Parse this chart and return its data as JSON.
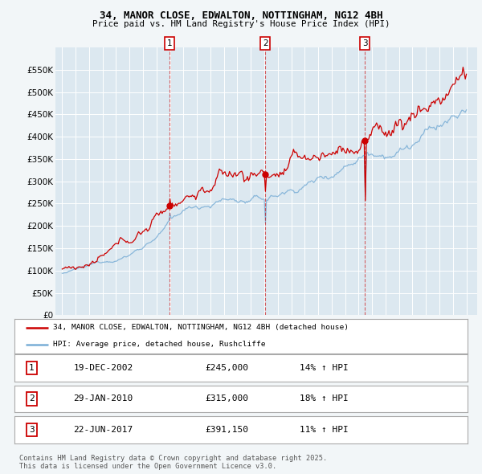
{
  "title_line1": "34, MANOR CLOSE, EDWALTON, NOTTINGHAM, NG12 4BH",
  "title_line2": "Price paid vs. HM Land Registry's House Price Index (HPI)",
  "bg_color": "#dce8f0",
  "plot_bg_color": "#dce8f0",
  "grid_color": "#ffffff",
  "red_color": "#cc0000",
  "blue_color": "#7aaed6",
  "ylim": [
    0,
    600000
  ],
  "ytick_vals": [
    0,
    50000,
    100000,
    150000,
    200000,
    250000,
    300000,
    350000,
    400000,
    450000,
    500000,
    550000
  ],
  "ytick_labels": [
    "£0",
    "£50K",
    "£100K",
    "£150K",
    "£200K",
    "£250K",
    "£300K",
    "£350K",
    "£400K",
    "£450K",
    "£500K",
    "£550K"
  ],
  "purchase_year_floats": [
    2002.96,
    2010.08,
    2017.47
  ],
  "purchase_prices": [
    245000,
    315000,
    391150
  ],
  "purchase_labels": [
    "1",
    "2",
    "3"
  ],
  "legend_entries": [
    "34, MANOR CLOSE, EDWALTON, NOTTINGHAM, NG12 4BH (detached house)",
    "HPI: Average price, detached house, Rushcliffe"
  ],
  "table_rows": [
    [
      "1",
      "19-DEC-2002",
      "£245,000",
      "14% ↑ HPI"
    ],
    [
      "2",
      "29-JAN-2010",
      "£315,000",
      "18% ↑ HPI"
    ],
    [
      "3",
      "22-JUN-2017",
      "£391,150",
      "11% ↑ HPI"
    ]
  ],
  "footer": "Contains HM Land Registry data © Crown copyright and database right 2025.\nThis data is licensed under the Open Government Licence v3.0."
}
